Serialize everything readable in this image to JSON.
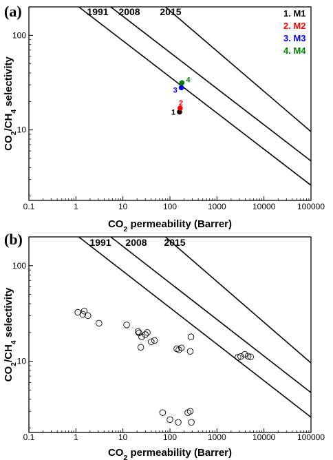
{
  "chart_data": [
    {
      "panel": "(a)",
      "type": "scatter",
      "xlabel": "CO2 permeability (Barrer)",
      "ylabel": "CO2/CH4 selectivity",
      "xscale": "log",
      "yscale": "log",
      "xlim": [
        0.1,
        100000
      ],
      "ylim": [
        1.8,
        200
      ],
      "xticks": [
        "0.1",
        "1",
        "10",
        "100",
        "1000",
        "10000",
        "100000"
      ],
      "yticks": [
        "10",
        "100"
      ],
      "grid": false,
      "legend_position": "top-right",
      "upper_bounds": [
        {
          "label": "1991",
          "x": [
            1.15,
            100000
          ],
          "y": [
            200,
            2.6
          ]
        },
        {
          "label": "2008",
          "x": [
            5.5,
            100000
          ],
          "y": [
            200,
            4.7
          ]
        },
        {
          "label": "2015",
          "x": [
            80,
            100000
          ],
          "y": [
            200,
            9.6
          ]
        }
      ],
      "series": [
        {
          "name": "1. M1",
          "label": "1",
          "color": "#000000",
          "x": [
            160
          ],
          "y": [
            15.5
          ]
        },
        {
          "name": "2. M2",
          "label": "2",
          "color": "#ff0000",
          "x": [
            165
          ],
          "y": [
            17
          ]
        },
        {
          "name": "3. M3",
          "label": "3",
          "color": "#0000ff",
          "x": [
            175
          ],
          "y": [
            28
          ]
        },
        {
          "name": "4. M4",
          "label": "4",
          "color": "#008000",
          "x": [
            180
          ],
          "y": [
            31.5
          ]
        }
      ]
    },
    {
      "panel": "(b)",
      "type": "scatter",
      "xlabel": "CO2 permeability (Barrer)",
      "ylabel": "CO2/CH4 selectivity",
      "xscale": "log",
      "yscale": "log",
      "xlim": [
        0.1,
        100000
      ],
      "ylim": [
        1.8,
        200
      ],
      "xticks": [
        "0.1",
        "1",
        "10",
        "100",
        "1000",
        "10000",
        "100000"
      ],
      "yticks": [
        "10",
        "100"
      ],
      "grid": false,
      "upper_bounds": [
        {
          "label": "1991",
          "x": [
            1.15,
            100000
          ],
          "y": [
            200,
            2.6
          ]
        },
        {
          "label": "2008",
          "x": [
            5.5,
            100000
          ],
          "y": [
            200,
            4.7
          ]
        },
        {
          "label": "2015",
          "x": [
            80,
            100000
          ],
          "y": [
            200,
            9.6
          ]
        }
      ],
      "series": [
        {
          "marker": "open-circle",
          "x": [
            1.1,
            1.4,
            1.5,
            1.8,
            3.1,
            12,
            21,
            22,
            24,
            25,
            30,
            33,
            40,
            47,
            140,
            155,
            175,
            270,
            280,
            2800,
            3200,
            3900,
            4600,
            5200,
            70,
            100,
            150,
            240,
            270,
            285
          ],
          "y": [
            32.5,
            31,
            33.5,
            30,
            25,
            24,
            20.5,
            19.8,
            14,
            18,
            19,
            20,
            16,
            16.5,
            13.5,
            13.2,
            13.8,
            12.7,
            18,
            11,
            11.2,
            11.8,
            11.3,
            11.1,
            2.9,
            2.45,
            2.3,
            2.9,
            3,
            2.3
          ]
        }
      ]
    }
  ]
}
